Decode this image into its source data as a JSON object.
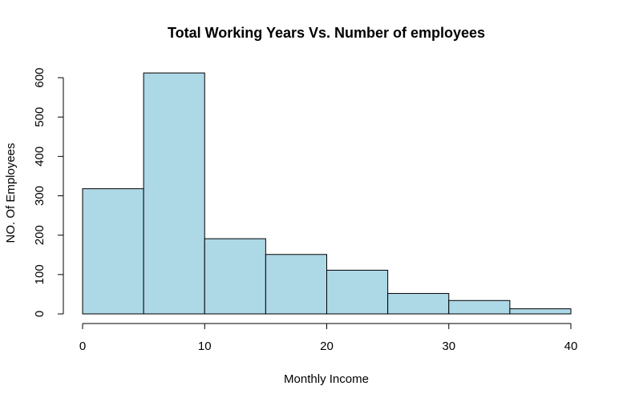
{
  "chart_data": {
    "type": "bar",
    "title": "Total Working Years Vs. Number of employees",
    "xlabel": "Monthly Income",
    "ylabel": "NO. Of Employees",
    "bins": [
      [
        0,
        5
      ],
      [
        5,
        10
      ],
      [
        10,
        15
      ],
      [
        15,
        20
      ],
      [
        20,
        25
      ],
      [
        25,
        30
      ],
      [
        30,
        35
      ],
      [
        35,
        40
      ]
    ],
    "values": [
      318,
      612,
      191,
      151,
      111,
      52,
      34,
      13
    ],
    "xlim": [
      0,
      40
    ],
    "ylim": [
      0,
      600
    ],
    "x_ticks": [
      0,
      10,
      20,
      30,
      40
    ],
    "y_ticks": [
      0,
      100,
      200,
      300,
      400,
      500,
      600
    ],
    "bar_color": "#add8e6",
    "grid": false
  }
}
